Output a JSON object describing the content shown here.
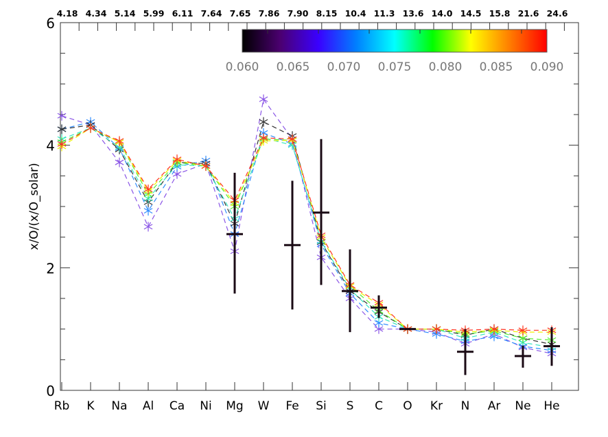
{
  "chart_data": {
    "type": "scatter",
    "title": "",
    "xlabel": "",
    "ylabel": "x/O/(x/O_solar)",
    "ylim": [
      0,
      6
    ],
    "yticks": [
      "0",
      "2",
      "4",
      "6"
    ],
    "categories": [
      "Rb",
      "K",
      "Na",
      "Al",
      "Ca",
      "Ni",
      "Mg",
      "W",
      "Fe",
      "Si",
      "S",
      "C",
      "O",
      "Kr",
      "N",
      "Ar",
      "Ne",
      "He"
    ],
    "top_labels": [
      "4.18",
      "4.34",
      "5.14",
      "5.99",
      "6.11",
      "7.64",
      "7.65",
      "7.86",
      "7.90",
      "8.15",
      "10.4",
      "11.3",
      "13.6",
      "14.0",
      "14.5",
      "15.8",
      "21.6",
      "24.6"
    ],
    "colorbar": {
      "range": [
        0.06,
        0.09
      ],
      "tick_labels": [
        "0.060",
        "0.065",
        "0.070",
        "0.075",
        "0.080",
        "0.085",
        "0.090"
      ],
      "colors": [
        "#000000",
        "#4b0070",
        "#3a00ff",
        "#0080ff",
        "#00ffff",
        "#00ff00",
        "#ffff00",
        "#ff8000",
        "#ff0000"
      ]
    },
    "series": [
      {
        "param": 0.065,
        "color": "#8a55e6",
        "values": [
          4.48,
          4.33,
          3.72,
          2.67,
          3.53,
          3.7,
          2.27,
          4.75,
          4.1,
          2.17,
          1.5,
          1.0,
          1.0,
          0.95,
          0.76,
          0.92,
          0.7,
          0.6
        ]
      },
      {
        "param": 0.07,
        "color": "#2f8cff",
        "values": [
          4.26,
          4.38,
          3.95,
          2.93,
          3.65,
          3.75,
          2.55,
          4.2,
          4.02,
          2.38,
          1.58,
          1.1,
          1.0,
          0.92,
          0.8,
          0.88,
          0.72,
          0.65
        ]
      },
      {
        "param": 0.06,
        "color": "#333333",
        "values": [
          4.26,
          4.33,
          3.93,
          3.07,
          3.72,
          3.7,
          2.72,
          4.38,
          4.15,
          2.42,
          1.62,
          1.28,
          1.0,
          1.0,
          0.9,
          1.0,
          0.85,
          0.75
        ]
      },
      {
        "param": 0.075,
        "color": "#33e6c0",
        "values": [
          4.1,
          4.28,
          3.97,
          3.13,
          3.68,
          3.66,
          2.8,
          4.12,
          4.0,
          2.43,
          1.65,
          1.2,
          1.0,
          1.0,
          0.85,
          0.95,
          0.78,
          0.7
        ]
      },
      {
        "param": 0.08,
        "color": "#55ee33",
        "values": [
          4.05,
          4.28,
          4.05,
          3.2,
          3.72,
          3.66,
          3.0,
          4.1,
          4.08,
          2.5,
          1.7,
          1.3,
          1.0,
          1.0,
          0.92,
          0.97,
          0.85,
          0.82
        ]
      },
      {
        "param": 0.085,
        "color": "#f0f000",
        "values": [
          3.98,
          4.28,
          4.05,
          3.25,
          3.75,
          3.66,
          3.05,
          4.07,
          4.08,
          2.5,
          1.7,
          1.4,
          1.0,
          1.0,
          0.95,
          0.98,
          0.95,
          0.95
        ]
      },
      {
        "param": 0.09,
        "color": "#ff3322",
        "values": [
          4.02,
          4.28,
          4.07,
          3.28,
          3.77,
          3.66,
          3.1,
          4.12,
          4.1,
          2.53,
          1.72,
          1.43,
          1.0,
          1.0,
          0.98,
          1.0,
          0.98,
          0.98
        ]
      }
    ],
    "observed": [
      {
        "element": "Mg",
        "value": 2.55,
        "low": 1.58,
        "high": 3.55
      },
      {
        "element": "Fe",
        "value": 2.37,
        "low": 1.32,
        "high": 3.42
      },
      {
        "element": "Si",
        "value": 2.9,
        "low": 1.72,
        "high": 4.1
      },
      {
        "element": "S",
        "value": 1.62,
        "low": 0.95,
        "high": 2.3
      },
      {
        "element": "C",
        "value": 1.35,
        "low": 1.18,
        "high": 1.55
      },
      {
        "element": "O",
        "value": 1.0,
        "low": 1.0,
        "high": 1.0
      },
      {
        "element": "N",
        "value": 0.63,
        "low": 0.25,
        "high": 1.0
      },
      {
        "element": "Ne",
        "value": 0.56,
        "low": 0.37,
        "high": 0.73
      },
      {
        "element": "He",
        "value": 0.72,
        "low": 0.4,
        "high": 1.03
      }
    ]
  }
}
